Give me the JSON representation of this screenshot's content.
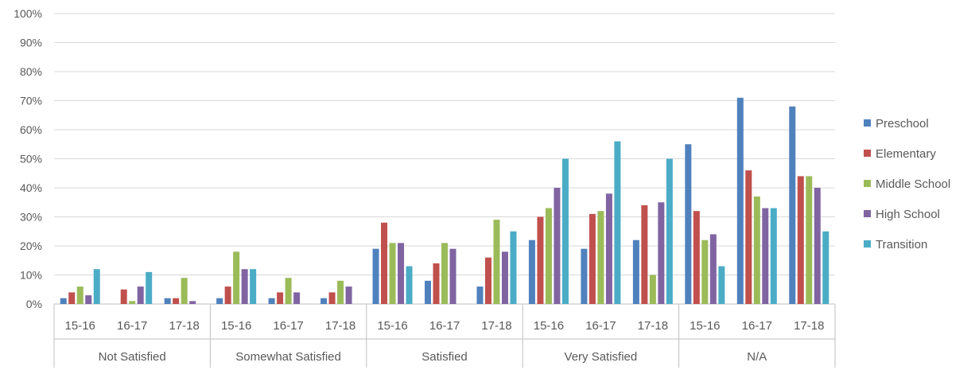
{
  "chart_data": {
    "type": "bar",
    "group_categories": [
      "Not Satisfied",
      "Somewhat Satisfied",
      "Satisfied",
      "Very Satisfied",
      "N/A"
    ],
    "years": [
      "15-16",
      "16-17",
      "17-18"
    ],
    "ylim": [
      0,
      100
    ],
    "yticks": [
      "0%",
      "10%",
      "20%",
      "30%",
      "40%",
      "50%",
      "60%",
      "70%",
      "80%",
      "90%",
      "100%"
    ],
    "grid": true,
    "legend_position": "right",
    "series": [
      {
        "name": "Preschool",
        "color": "#4F81BD",
        "values": [
          2,
          0,
          2,
          2,
          2,
          2,
          19,
          8,
          6,
          22,
          19,
          22,
          55,
          71,
          68
        ]
      },
      {
        "name": "Elementary",
        "color": "#C0504D",
        "values": [
          4,
          5,
          2,
          6,
          4,
          4,
          28,
          14,
          16,
          30,
          31,
          34,
          32,
          46,
          44
        ]
      },
      {
        "name": "Middle School",
        "color": "#9BBB59",
        "values": [
          6,
          1,
          9,
          18,
          9,
          8,
          21,
          21,
          29,
          33,
          32,
          10,
          22,
          37,
          44
        ]
      },
      {
        "name": "High School",
        "color": "#8064A2",
        "values": [
          3,
          6,
          1,
          12,
          4,
          6,
          21,
          19,
          18,
          40,
          38,
          35,
          24,
          33,
          40
        ]
      },
      {
        "name": "Transition",
        "color": "#4BACC6",
        "values": [
          12,
          11,
          0,
          12,
          0,
          0,
          13,
          0,
          25,
          50,
          56,
          50,
          13,
          33,
          25
        ]
      }
    ]
  }
}
